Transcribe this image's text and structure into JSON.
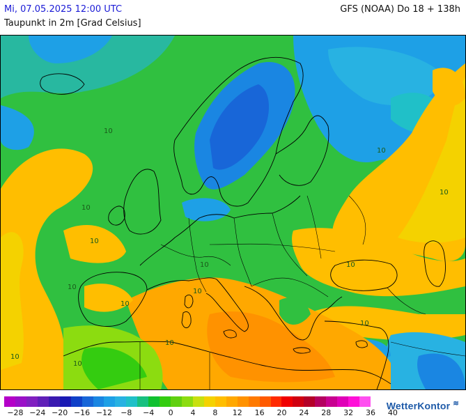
{
  "header": {
    "date": "Mi, 07.05.2025 12:00 UTC",
    "parameter": "Taupunkt in 2m [Grad Celsius]",
    "model": "GFS (NOAA) Do 18 + 138h"
  },
  "map": {
    "contour_labels": [
      "10",
      "10",
      "10",
      "10",
      "10",
      "10",
      "10",
      "10",
      "10",
      "10",
      "10",
      "10",
      "10",
      "10"
    ]
  },
  "legend": {
    "colors": [
      "#b400c8",
      "#9a10c8",
      "#8020c0",
      "#6020b8",
      "#3a1ab0",
      "#1a1ab4",
      "#1040c8",
      "#1866d8",
      "#1a86e2",
      "#1ea0e6",
      "#28b2e2",
      "#20c0c8",
      "#18c080",
      "#10c030",
      "#34cc10",
      "#60d010",
      "#8cdc10",
      "#c8e010",
      "#f4d200",
      "#ffbe00",
      "#ffa800",
      "#ff9200",
      "#ff7a00",
      "#ff5a00",
      "#ff2a00",
      "#f00000",
      "#d00010",
      "#b40028",
      "#b40060",
      "#c80090",
      "#e000b8",
      "#ff10d8",
      "#ff50f0"
    ],
    "ticks": [
      "−28",
      "−24",
      "−20",
      "−16",
      "−12",
      "−8",
      "−4",
      "0",
      "4",
      "8",
      "12",
      "16",
      "20",
      "24",
      "28",
      "32",
      "36",
      "40"
    ]
  },
  "brand": {
    "name": "WetterKontor",
    "mark": "≋"
  }
}
